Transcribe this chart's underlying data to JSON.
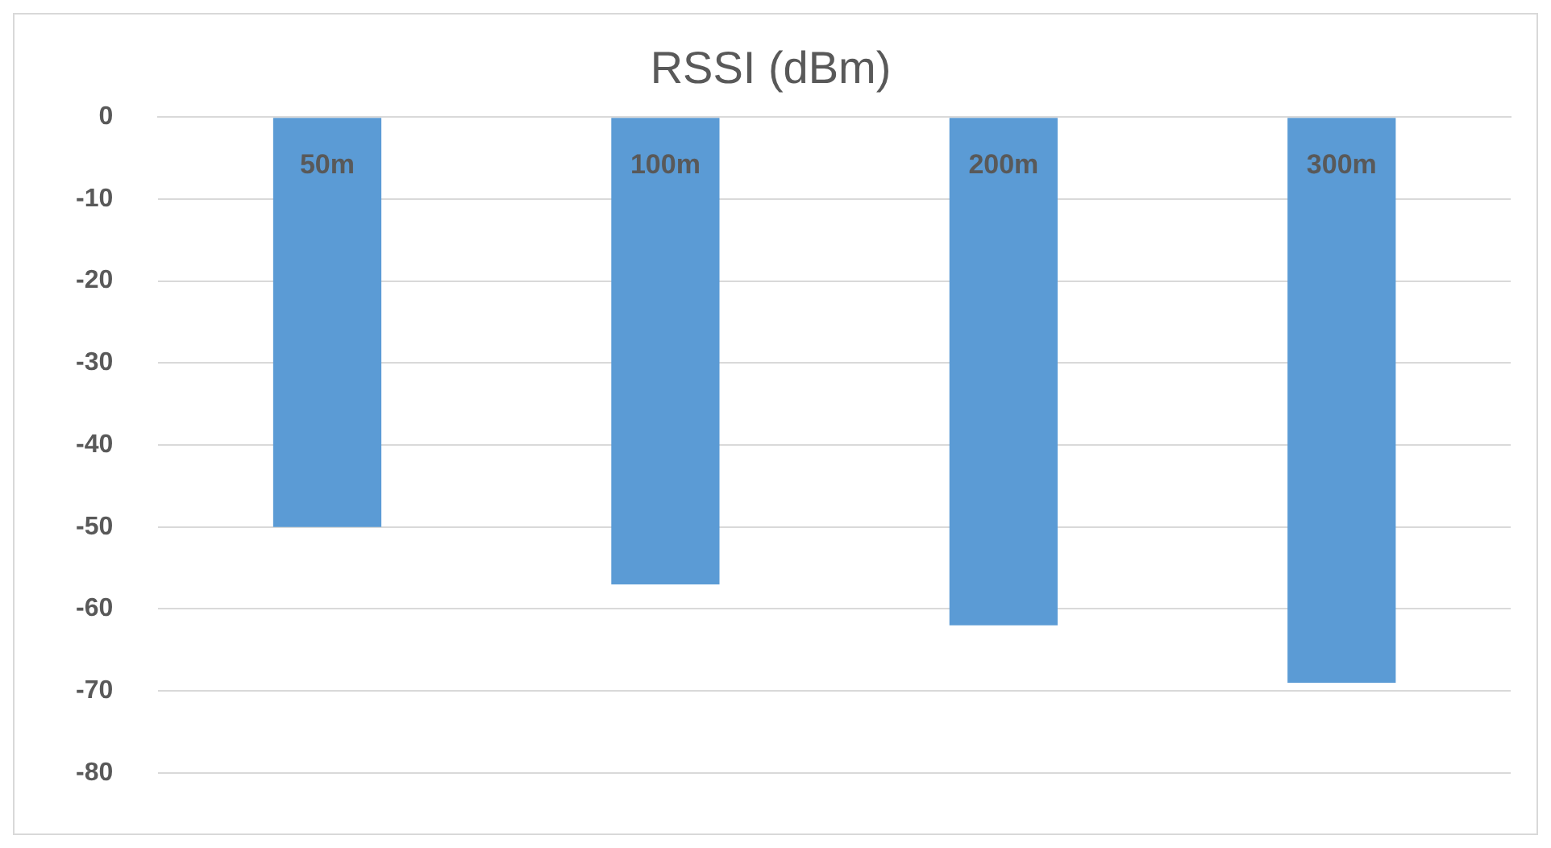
{
  "chart_data": {
    "type": "bar",
    "title": "RSSI (dBm)",
    "categories": [
      "50m",
      "100m",
      "200m",
      "300m"
    ],
    "values": [
      -50,
      -57,
      -62,
      -69
    ],
    "color": "#5b9bd5",
    "ylim": [
      -80,
      0
    ],
    "yticks": [
      0,
      -10,
      -20,
      -30,
      -40,
      -50,
      -60,
      -70,
      -80
    ],
    "grid": "y"
  }
}
